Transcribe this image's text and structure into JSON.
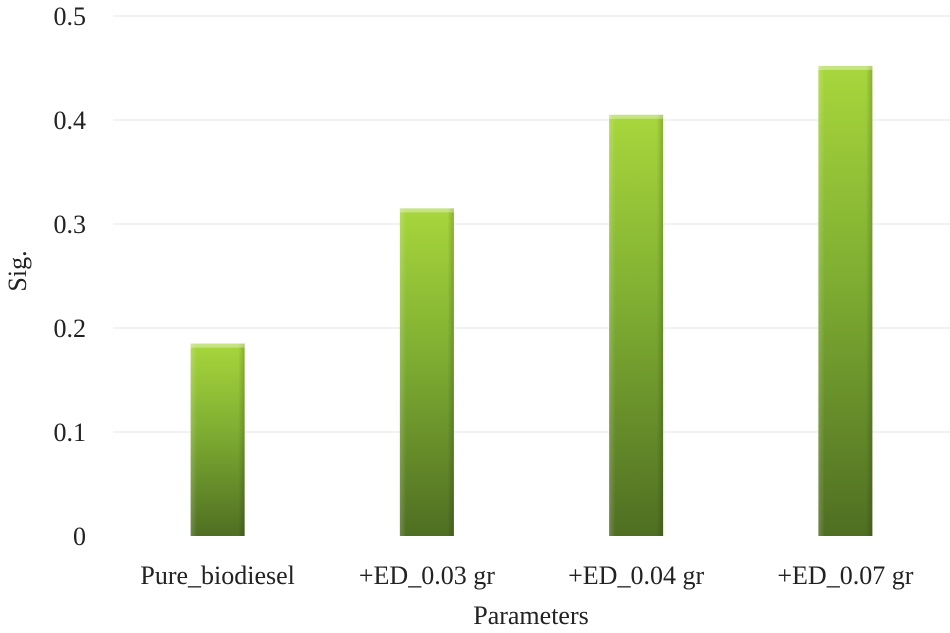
{
  "chart_data": {
    "type": "bar",
    "title": "",
    "xlabel": "Parameters",
    "ylabel": "Sig.",
    "categories": [
      "Pure_biodiesel",
      "+ED_0.03 gr",
      "+ED_0.04 gr",
      "+ED_0.07 gr"
    ],
    "values": [
      0.185,
      0.315,
      0.405,
      0.452
    ],
    "ylim": [
      0,
      0.5
    ],
    "yticks": [
      "0",
      "0.1",
      "0.2",
      "0.3",
      "0.4",
      "0.5"
    ],
    "grid": true,
    "legend": "none",
    "colors": {
      "bar_top": "#a8d63c",
      "bar_mid": "#7fae32",
      "bar_bottom": "#4f6e22",
      "grid": "#e6e6e6",
      "text": "#222222"
    }
  }
}
